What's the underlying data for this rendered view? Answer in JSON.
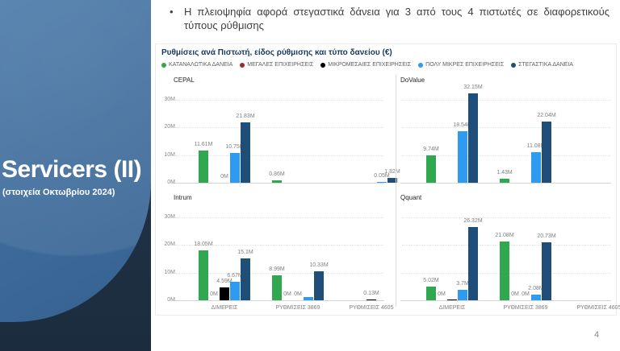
{
  "slide": {
    "bullet_marker": "•",
    "bullet": "Η πλειοψηφία αφορά στεγαστικά δάνεια για 3 από τους 4 πιστωτές σε διαφορετικούς τύπους ρύθμισης",
    "page_number": "4",
    "sidebar": {
      "title": "Servicers (II)",
      "subtitle": "(στοιχεία Οκτωβρίου 2024)"
    }
  },
  "chart_data": {
    "type": "bar",
    "title": "Ρυθμίσεις ανά Πιστωτή, είδος ρύθμισης και τύπο δανείου (€)",
    "unit": "EUR millions",
    "ylim": [
      0,
      30
    ],
    "yticks": [
      "0M",
      "10M",
      "20M",
      "30M"
    ],
    "grid": true,
    "legend_position": "top",
    "categories": [
      "ΔΙΜΕΡΕΙΣ",
      "ΡΥΘΜΙΣΕΙΣ 3869",
      "ΡΥΘΜΙΣΕΙΣ 4605"
    ],
    "series": [
      {
        "name": "ΚΑΤΑΝΑΛΩΤΙΚΑ ΔΑΝΕΙΑ",
        "color": "#2fa84f"
      },
      {
        "name": "ΜΕΓΑΛΕΣ ΕΠΙΧΕΙΡΗΣΕΙΣ",
        "color": "#a02b2b"
      },
      {
        "name": "ΜΙΚΡΟΜΕΣΑΙΕΣ ΕΠΙΧΕΙΡΗΣΕΙΣ",
        "color": "#000000"
      },
      {
        "name": "ΠΟΛΥ ΜΙΚΡΕΣ ΕΠΙΧΕΙΡΗΣΕΙΣ",
        "color": "#2e9bf0"
      },
      {
        "name": "ΣΤΕΓΑΣΤΙΚΑ ΔΑΝΕΙΑ",
        "color": "#1f4e79"
      }
    ],
    "facets": [
      {
        "name": "CEPAL",
        "groups": [
          [
            {
              "series": 0,
              "value": 11.61,
              "label": "11.61M"
            },
            {
              "series": 2,
              "value": 0,
              "label": "0M"
            },
            {
              "series": 3,
              "value": 10.75,
              "label": "10.75M"
            },
            {
              "series": 4,
              "value": 21.83,
              "label": "21.83M"
            }
          ],
          [
            {
              "series": 0,
              "value": 0.86,
              "label": "0.86M"
            }
          ],
          [
            {
              "series": 3,
              "value": 0.05,
              "label": "0.05M"
            },
            {
              "series": 4,
              "value": 1.82,
              "label": "1.82M"
            }
          ]
        ]
      },
      {
        "name": "DoValue",
        "groups": [
          [
            {
              "series": 0,
              "value": 9.74,
              "label": "9.74M"
            },
            {
              "series": 3,
              "value": 18.54,
              "label": "18.54M"
            },
            {
              "series": 4,
              "value": 32.15,
              "label": "32.15M"
            }
          ],
          [
            {
              "series": 0,
              "value": 1.43,
              "label": "1.43M"
            },
            {
              "series": 3,
              "value": 11.08,
              "label": "11.08M"
            },
            {
              "series": 4,
              "value": 22.04,
              "label": "22.04M"
            }
          ],
          []
        ]
      },
      {
        "name": "Intrum",
        "groups": [
          [
            {
              "series": 0,
              "value": 18.05,
              "label": "18.05M"
            },
            {
              "series": 1,
              "value": 0,
              "label": "0M"
            },
            {
              "series": 2,
              "value": 4.59,
              "label": "4.59M"
            },
            {
              "series": 3,
              "value": 6.67,
              "label": "6.67M"
            },
            {
              "series": 4,
              "value": 15.1,
              "label": "15.1M"
            }
          ],
          [
            {
              "series": 0,
              "value": 8.99,
              "label": "8.99M"
            },
            {
              "series": 1,
              "value": 0,
              "label": "0M"
            },
            {
              "series": 2,
              "value": 0,
              "label": "0M"
            },
            {
              "series": 3,
              "value": 1.1,
              "label": ""
            },
            {
              "series": 4,
              "value": 10.33,
              "label": "10.33M"
            }
          ],
          [
            {
              "series": 2,
              "value": 0.13,
              "label": "0.13M"
            }
          ]
        ]
      },
      {
        "name": "Qquant",
        "groups": [
          [
            {
              "series": 0,
              "value": 5.02,
              "label": "5.02M"
            },
            {
              "series": 1,
              "value": 0,
              "label": "0M"
            },
            {
              "series": 2,
              "value": 0.3,
              "label": ""
            },
            {
              "series": 3,
              "value": 3.7,
              "label": "3.7M"
            },
            {
              "series": 4,
              "value": 26.32,
              "label": "26.32M"
            }
          ],
          [
            {
              "series": 0,
              "value": 21.08,
              "label": "21.08M"
            },
            {
              "series": 1,
              "value": 0,
              "label": "0M"
            },
            {
              "series": 2,
              "value": 0,
              "label": "0M"
            },
            {
              "series": 3,
              "value": 2.08,
              "label": "2.08M"
            },
            {
              "series": 4,
              "value": 20.73,
              "label": "20.73M"
            }
          ],
          []
        ]
      }
    ]
  }
}
